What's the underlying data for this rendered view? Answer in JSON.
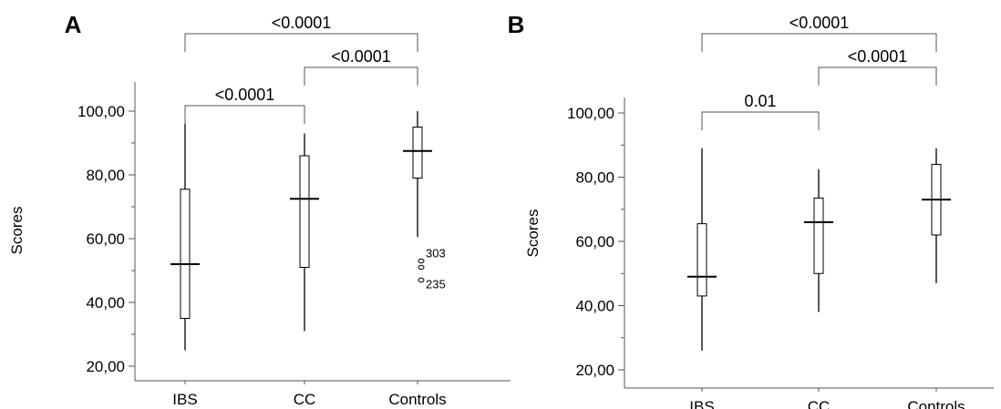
{
  "chart_data": [
    {
      "type": "box",
      "panel": "A",
      "ylabel": "Scores",
      "categories": [
        "IBS",
        "CC",
        "Controls"
      ],
      "yticks": [
        "20,00",
        "40,00",
        "60,00",
        "80,00",
        "100,00"
      ],
      "ylim": [
        17,
        104
      ],
      "boxes": [
        {
          "category": "IBS",
          "min": 25,
          "q1": 35,
          "median": 52,
          "q3": 75.5,
          "max": 96
        },
        {
          "category": "CC",
          "min": 31,
          "q1": 51,
          "median": 72.5,
          "q3": 86,
          "max": 93
        },
        {
          "category": "Controls",
          "min": 60.5,
          "q1": 79,
          "median": 87.5,
          "q3": 95,
          "max": 100
        }
      ],
      "outliers": [
        {
          "category": "Controls",
          "value": 53,
          "label": "303"
        },
        {
          "category": "Controls",
          "value": 51
        },
        {
          "category": "Controls",
          "value": 47,
          "label": "235"
        }
      ],
      "comparisons": [
        {
          "from": "IBS",
          "to": "Controls",
          "label": "<0.0001"
        },
        {
          "from": "CC",
          "to": "Controls",
          "label": "<0.0001"
        },
        {
          "from": "IBS",
          "to": "CC",
          "label": "<0.0001"
        }
      ]
    },
    {
      "type": "box",
      "panel": "B",
      "ylabel": "Scores",
      "categories": [
        "IBS",
        "CC",
        "Controls"
      ],
      "yticks": [
        "20,00",
        "40,00",
        "60,00",
        "80,00",
        "100,00"
      ],
      "ylim": [
        17,
        103
      ],
      "boxes": [
        {
          "category": "IBS",
          "min": 26,
          "q1": 43,
          "median": 49,
          "q3": 65.5,
          "max": 89
        },
        {
          "category": "CC",
          "min": 38,
          "q1": 50,
          "median": 66,
          "q3": 73.5,
          "max": 82.5
        },
        {
          "category": "Controls",
          "min": 47,
          "q1": 62,
          "median": 73,
          "q3": 84,
          "max": 89
        }
      ],
      "outliers": [],
      "comparisons": [
        {
          "from": "IBS",
          "to": "Controls",
          "label": "<0.0001"
        },
        {
          "from": "CC",
          "to": "Controls",
          "label": "<0.0001"
        },
        {
          "from": "IBS",
          "to": "CC",
          "label": "0.01"
        }
      ]
    }
  ]
}
